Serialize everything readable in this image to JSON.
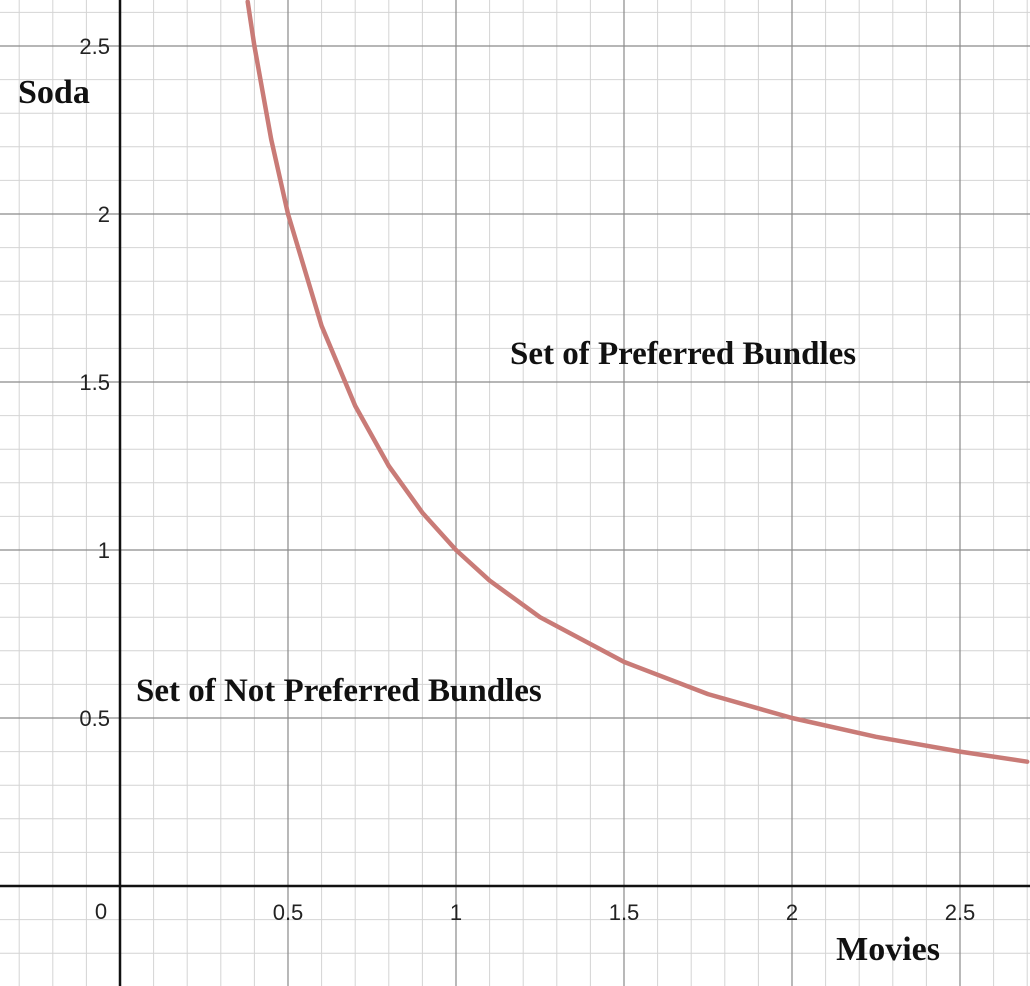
{
  "chart_data": {
    "type": "line",
    "xlabel": "Movies",
    "ylabel": "Soda",
    "xlim": [
      -0.35,
      2.7
    ],
    "ylim": [
      -0.3,
      2.65
    ],
    "grid": true,
    "minor_grid_step": 0.1,
    "major_grid_step": 0.5,
    "x_ticks": [
      {
        "value": 0.5,
        "label": "0.5"
      },
      {
        "value": 1,
        "label": "1"
      },
      {
        "value": 1.5,
        "label": "1.5"
      },
      {
        "value": 2,
        "label": "2"
      },
      {
        "value": 2.5,
        "label": "2.5"
      }
    ],
    "y_ticks": [
      {
        "value": 0.5,
        "label": "0.5"
      },
      {
        "value": 1,
        "label": "1"
      },
      {
        "value": 1.5,
        "label": "1.5"
      },
      {
        "value": 2,
        "label": "2"
      },
      {
        "value": 2.5,
        "label": "2.5"
      }
    ],
    "origin_label": "0",
    "series": [
      {
        "color": "#c97b77",
        "x": [
          0.38,
          0.4,
          0.45,
          0.5,
          0.6,
          0.7,
          0.8,
          0.9,
          1.0,
          1.1,
          1.25,
          1.5,
          1.75,
          2.0,
          2.25,
          2.5,
          2.7
        ],
        "y": [
          2.632,
          2.5,
          2.222,
          2.0,
          1.667,
          1.429,
          1.25,
          1.111,
          1.0,
          0.909,
          0.8,
          0.667,
          0.571,
          0.5,
          0.444,
          0.4,
          0.37
        ]
      }
    ],
    "annotations": [
      {
        "text": "Set of Preferred Bundles",
        "x": 1.15,
        "y": 1.5
      },
      {
        "text": "Set of Not Preferred Bundles",
        "x": 0.05,
        "y": 0.5
      }
    ]
  }
}
